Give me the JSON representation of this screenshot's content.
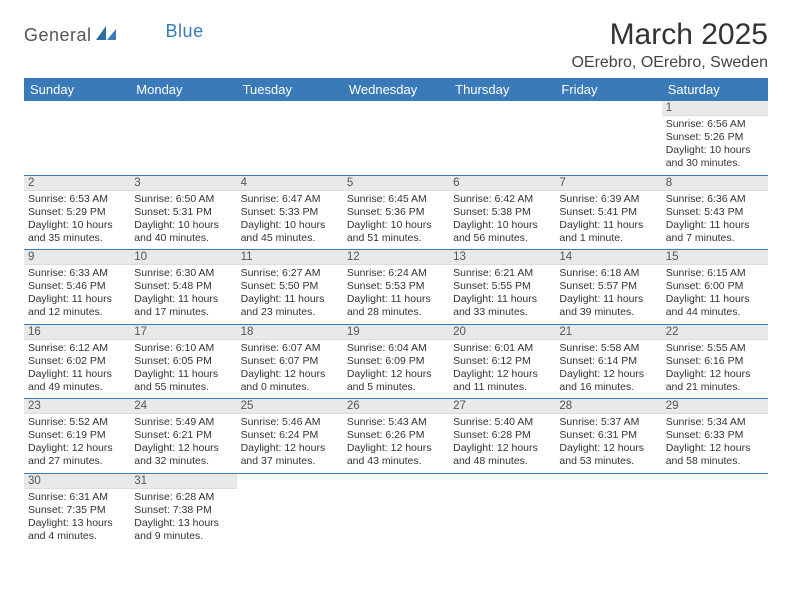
{
  "logo": {
    "part1": "General",
    "part2": "Blue"
  },
  "title": "March 2025",
  "location": "OErebro, OErebro, Sweden",
  "colors": {
    "accent": "#3a7ab8",
    "header_bg": "#3a7ab8",
    "daynum_bg": "#e9e9e9"
  },
  "weekdays": [
    "Sunday",
    "Monday",
    "Tuesday",
    "Wednesday",
    "Thursday",
    "Friday",
    "Saturday"
  ],
  "weeks": [
    [
      null,
      null,
      null,
      null,
      null,
      null,
      {
        "d": "1",
        "sr": "6:56 AM",
        "ss": "5:26 PM",
        "dl": "10 hours and 30 minutes."
      }
    ],
    [
      {
        "d": "2",
        "sr": "6:53 AM",
        "ss": "5:29 PM",
        "dl": "10 hours and 35 minutes."
      },
      {
        "d": "3",
        "sr": "6:50 AM",
        "ss": "5:31 PM",
        "dl": "10 hours and 40 minutes."
      },
      {
        "d": "4",
        "sr": "6:47 AM",
        "ss": "5:33 PM",
        "dl": "10 hours and 45 minutes."
      },
      {
        "d": "5",
        "sr": "6:45 AM",
        "ss": "5:36 PM",
        "dl": "10 hours and 51 minutes."
      },
      {
        "d": "6",
        "sr": "6:42 AM",
        "ss": "5:38 PM",
        "dl": "10 hours and 56 minutes."
      },
      {
        "d": "7",
        "sr": "6:39 AM",
        "ss": "5:41 PM",
        "dl": "11 hours and 1 minute."
      },
      {
        "d": "8",
        "sr": "6:36 AM",
        "ss": "5:43 PM",
        "dl": "11 hours and 7 minutes."
      }
    ],
    [
      {
        "d": "9",
        "sr": "6:33 AM",
        "ss": "5:46 PM",
        "dl": "11 hours and 12 minutes."
      },
      {
        "d": "10",
        "sr": "6:30 AM",
        "ss": "5:48 PM",
        "dl": "11 hours and 17 minutes."
      },
      {
        "d": "11",
        "sr": "6:27 AM",
        "ss": "5:50 PM",
        "dl": "11 hours and 23 minutes."
      },
      {
        "d": "12",
        "sr": "6:24 AM",
        "ss": "5:53 PM",
        "dl": "11 hours and 28 minutes."
      },
      {
        "d": "13",
        "sr": "6:21 AM",
        "ss": "5:55 PM",
        "dl": "11 hours and 33 minutes."
      },
      {
        "d": "14",
        "sr": "6:18 AM",
        "ss": "5:57 PM",
        "dl": "11 hours and 39 minutes."
      },
      {
        "d": "15",
        "sr": "6:15 AM",
        "ss": "6:00 PM",
        "dl": "11 hours and 44 minutes."
      }
    ],
    [
      {
        "d": "16",
        "sr": "6:12 AM",
        "ss": "6:02 PM",
        "dl": "11 hours and 49 minutes."
      },
      {
        "d": "17",
        "sr": "6:10 AM",
        "ss": "6:05 PM",
        "dl": "11 hours and 55 minutes."
      },
      {
        "d": "18",
        "sr": "6:07 AM",
        "ss": "6:07 PM",
        "dl": "12 hours and 0 minutes."
      },
      {
        "d": "19",
        "sr": "6:04 AM",
        "ss": "6:09 PM",
        "dl": "12 hours and 5 minutes."
      },
      {
        "d": "20",
        "sr": "6:01 AM",
        "ss": "6:12 PM",
        "dl": "12 hours and 11 minutes."
      },
      {
        "d": "21",
        "sr": "5:58 AM",
        "ss": "6:14 PM",
        "dl": "12 hours and 16 minutes."
      },
      {
        "d": "22",
        "sr": "5:55 AM",
        "ss": "6:16 PM",
        "dl": "12 hours and 21 minutes."
      }
    ],
    [
      {
        "d": "23",
        "sr": "5:52 AM",
        "ss": "6:19 PM",
        "dl": "12 hours and 27 minutes."
      },
      {
        "d": "24",
        "sr": "5:49 AM",
        "ss": "6:21 PM",
        "dl": "12 hours and 32 minutes."
      },
      {
        "d": "25",
        "sr": "5:46 AM",
        "ss": "6:24 PM",
        "dl": "12 hours and 37 minutes."
      },
      {
        "d": "26",
        "sr": "5:43 AM",
        "ss": "6:26 PM",
        "dl": "12 hours and 43 minutes."
      },
      {
        "d": "27",
        "sr": "5:40 AM",
        "ss": "6:28 PM",
        "dl": "12 hours and 48 minutes."
      },
      {
        "d": "28",
        "sr": "5:37 AM",
        "ss": "6:31 PM",
        "dl": "12 hours and 53 minutes."
      },
      {
        "d": "29",
        "sr": "5:34 AM",
        "ss": "6:33 PM",
        "dl": "12 hours and 58 minutes."
      }
    ],
    [
      {
        "d": "30",
        "sr": "6:31 AM",
        "ss": "7:35 PM",
        "dl": "13 hours and 4 minutes."
      },
      {
        "d": "31",
        "sr": "6:28 AM",
        "ss": "7:38 PM",
        "dl": "13 hours and 9 minutes."
      },
      null,
      null,
      null,
      null,
      null
    ]
  ],
  "labels": {
    "sunrise": "Sunrise:",
    "sunset": "Sunset:",
    "daylight": "Daylight:"
  }
}
